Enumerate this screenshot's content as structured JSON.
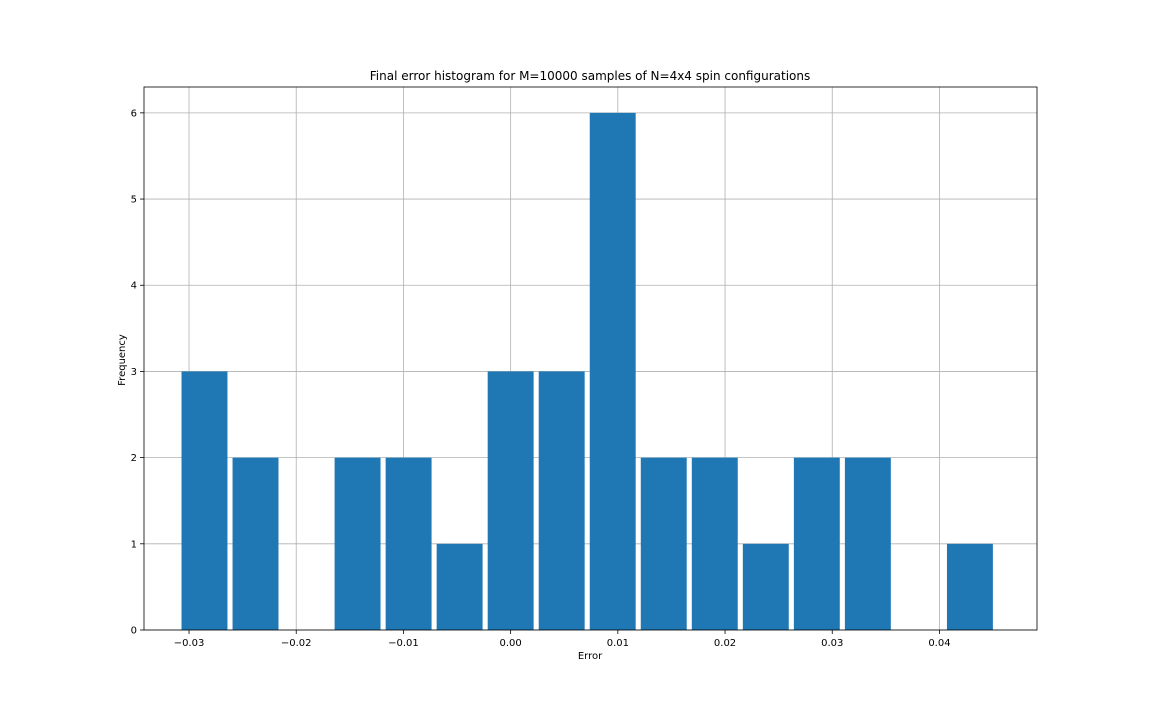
{
  "chart_data": {
    "type": "bar",
    "title": "Final error histogram for M=10000 samples of N=4x4 spin configurations",
    "xlabel": "Error",
    "ylabel": "Frequency",
    "xlim": [
      -0.0342,
      0.0491
    ],
    "ylim": [
      0,
      6.3
    ],
    "bin_width": 0.00476,
    "bar_fill_fraction": 0.9,
    "bin_starts": [
      -0.0307,
      -0.02594,
      -0.02118,
      -0.01642,
      -0.01166,
      -0.0069,
      -0.00214,
      0.00262,
      0.00738,
      0.01214,
      0.0169,
      0.02166,
      0.02642,
      0.03118,
      0.03594,
      0.0407
    ],
    "values": [
      3,
      2,
      0,
      2,
      2,
      1,
      3,
      3,
      6,
      2,
      2,
      1,
      2,
      2,
      0,
      1
    ],
    "xticks": [
      -0.03,
      -0.02,
      -0.01,
      0.0,
      0.01,
      0.02,
      0.03,
      0.04
    ],
    "xtick_labels": [
      "−0.03",
      "−0.02",
      "−0.01",
      "0.00",
      "0.01",
      "0.02",
      "0.03",
      "0.04"
    ],
    "yticks": [
      0,
      1,
      2,
      3,
      4,
      5,
      6
    ],
    "ytick_labels": [
      "0",
      "1",
      "2",
      "3",
      "4",
      "5",
      "6"
    ],
    "grid": true,
    "bar_color": "#1f77b4",
    "grid_color": "#b0b0b0"
  }
}
